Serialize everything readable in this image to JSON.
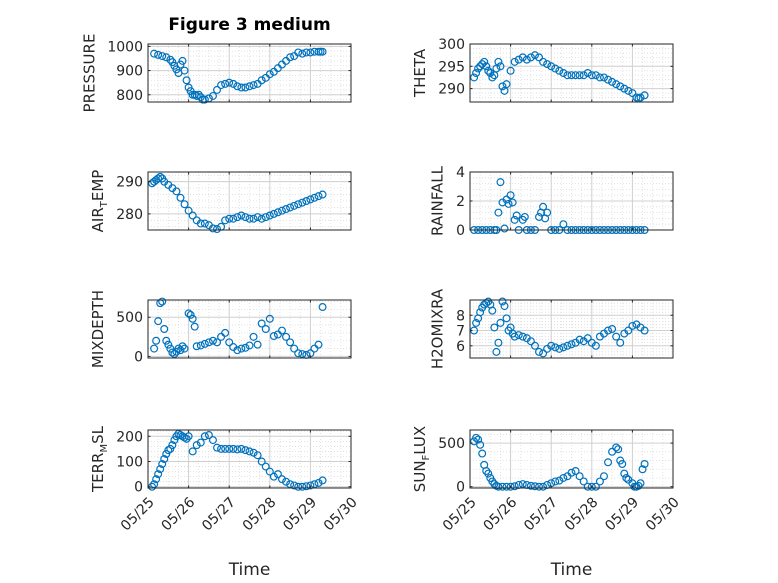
{
  "figure": {
    "title": "Figure 3 medium",
    "marker_color": "#0072BD"
  },
  "x_tick_labels": [
    "05/25",
    "05/26",
    "05/27",
    "05/28",
    "05/29",
    "05/30"
  ],
  "chart_data": [
    {
      "type": "scatter",
      "ylabel": "PRESSURE",
      "ylabel_parts": [
        "PRESSURE"
      ],
      "xlim": [
        0,
        5
      ],
      "ylim": [
        770,
        1010
      ],
      "yticks": [
        800,
        900,
        1000
      ],
      "show_x_ticklabels": false,
      "xlabel": "",
      "x": [
        0.15,
        0.25,
        0.35,
        0.45,
        0.55,
        0.6,
        0.65,
        0.7,
        0.75,
        0.8,
        0.85,
        0.9,
        0.95,
        1.0,
        1.05,
        1.1,
        1.15,
        1.2,
        1.25,
        1.3,
        1.35,
        1.4,
        1.5,
        1.6,
        1.7,
        1.8,
        1.9,
        2.0,
        2.1,
        2.2,
        2.3,
        2.4,
        2.5,
        2.6,
        2.7,
        2.8,
        2.9,
        3.0,
        3.1,
        3.2,
        3.3,
        3.4,
        3.5,
        3.6,
        3.7,
        3.8,
        3.9,
        4.0,
        4.1,
        4.2,
        4.25,
        4.3
      ],
      "y": [
        970,
        965,
        960,
        955,
        945,
        935,
        920,
        905,
        890,
        925,
        940,
        900,
        860,
        830,
        815,
        800,
        800,
        795,
        800,
        790,
        780,
        780,
        785,
        795,
        820,
        840,
        845,
        850,
        845,
        835,
        830,
        830,
        835,
        840,
        845,
        860,
        870,
        885,
        895,
        910,
        925,
        940,
        955,
        960,
        975,
        970,
        975,
        975,
        978,
        978,
        978,
        978
      ]
    },
    {
      "type": "scatter",
      "ylabel": "THETA",
      "ylabel_parts": [
        "THETA"
      ],
      "xlim": [
        0,
        5
      ],
      "ylim": [
        287,
        300
      ],
      "yticks": [
        290,
        295,
        300
      ],
      "show_x_ticklabels": false,
      "xlabel": "",
      "x": [
        0.1,
        0.15,
        0.2,
        0.25,
        0.3,
        0.35,
        0.4,
        0.45,
        0.5,
        0.55,
        0.6,
        0.65,
        0.7,
        0.75,
        0.8,
        0.85,
        0.9,
        1.0,
        1.1,
        1.2,
        1.3,
        1.4,
        1.5,
        1.6,
        1.7,
        1.8,
        1.9,
        2.0,
        2.1,
        2.2,
        2.3,
        2.4,
        2.5,
        2.6,
        2.7,
        2.8,
        2.9,
        3.0,
        3.1,
        3.2,
        3.3,
        3.4,
        3.5,
        3.6,
        3.7,
        3.8,
        3.9,
        4.0,
        4.1,
        4.15,
        4.2,
        4.3
      ],
      "y": [
        292.5,
        293.5,
        294.5,
        295,
        295.5,
        296,
        295,
        294,
        293.5,
        292.5,
        293,
        294.5,
        296,
        295,
        290.5,
        289.5,
        291,
        294,
        296,
        296.5,
        297,
        296.5,
        297,
        297.5,
        297,
        296,
        295.5,
        295,
        294.5,
        294,
        293.5,
        293,
        293,
        293,
        293,
        293,
        293.5,
        293,
        293,
        292.5,
        292.5,
        292,
        291.5,
        291,
        290.5,
        290,
        289.5,
        289,
        288,
        287.8,
        288,
        288.5
      ]
    },
    {
      "type": "scatter",
      "ylabel": "AIR_TEMP",
      "ylabel_parts": [
        "AIR",
        "T",
        "EMP"
      ],
      "xlim": [
        0,
        5
      ],
      "ylim": [
        275,
        293
      ],
      "yticks": [
        280,
        290
      ],
      "show_x_ticklabels": false,
      "xlabel": "",
      "x": [
        0.1,
        0.15,
        0.2,
        0.25,
        0.3,
        0.35,
        0.4,
        0.5,
        0.6,
        0.7,
        0.8,
        0.9,
        1.0,
        1.1,
        1.2,
        1.3,
        1.4,
        1.5,
        1.6,
        1.7,
        1.8,
        1.9,
        2.0,
        2.1,
        2.2,
        2.3,
        2.4,
        2.5,
        2.6,
        2.7,
        2.8,
        2.9,
        3.0,
        3.1,
        3.2,
        3.3,
        3.4,
        3.5,
        3.6,
        3.7,
        3.8,
        3.9,
        4.0,
        4.1,
        4.2,
        4.3
      ],
      "y": [
        289.5,
        290,
        290.5,
        291,
        291.5,
        291,
        290,
        289,
        288,
        287,
        285,
        283,
        281,
        279.5,
        278,
        277,
        277,
        276.5,
        275.5,
        275.3,
        276,
        278,
        278.5,
        278.5,
        279,
        279.5,
        279,
        278.5,
        278.5,
        279,
        278.5,
        279,
        279.5,
        280,
        280.5,
        281,
        281.5,
        282,
        282.5,
        283,
        283.5,
        284,
        284.5,
        285,
        285.5,
        286
      ]
    },
    {
      "type": "scatter",
      "ylabel": "RAINFALL",
      "ylabel_parts": [
        "RAINFALL"
      ],
      "xlim": [
        0,
        5
      ],
      "ylim": [
        0,
        4
      ],
      "yticks": [
        0,
        2,
        4
      ],
      "show_x_ticklabels": false,
      "xlabel": "",
      "x": [
        0.1,
        0.2,
        0.3,
        0.4,
        0.5,
        0.6,
        0.65,
        0.7,
        0.75,
        0.8,
        0.85,
        0.9,
        0.95,
        1.0,
        1.05,
        1.1,
        1.15,
        1.2,
        1.3,
        1.35,
        1.4,
        1.5,
        1.6,
        1.7,
        1.75,
        1.8,
        1.85,
        1.9,
        2.0,
        2.1,
        2.2,
        2.3,
        2.4,
        2.5,
        2.6,
        2.7,
        2.8,
        2.9,
        3.0,
        3.1,
        3.2,
        3.3,
        3.4,
        3.5,
        3.6,
        3.7,
        3.8,
        3.9,
        4.0,
        4.1,
        4.2,
        4.3
      ],
      "y": [
        0,
        0,
        0,
        0,
        0,
        0,
        0,
        1.2,
        3.3,
        1.9,
        0.1,
        2.1,
        1.8,
        2.4,
        1.9,
        0.7,
        1.0,
        0,
        0.7,
        0.9,
        0,
        0,
        0,
        0.9,
        1.2,
        1.6,
        0.8,
        1.2,
        0,
        0,
        0,
        0.4,
        0,
        0,
        0,
        0,
        0,
        0,
        0,
        0,
        0,
        0,
        0,
        0,
        0,
        0,
        0,
        0,
        0,
        0,
        0,
        0
      ]
    },
    {
      "type": "scatter",
      "ylabel": "MIXDEPTH",
      "ylabel_parts": [
        "MIXDEPTH"
      ],
      "xlim": [
        0,
        5
      ],
      "ylim": [
        -20,
        720
      ],
      "yticks": [
        0,
        500
      ],
      "show_x_ticklabels": false,
      "xlabel": "",
      "x": [
        0.15,
        0.2,
        0.25,
        0.3,
        0.35,
        0.4,
        0.45,
        0.5,
        0.55,
        0.6,
        0.65,
        0.7,
        0.75,
        0.8,
        0.85,
        0.9,
        1.0,
        1.05,
        1.1,
        1.15,
        1.2,
        1.3,
        1.4,
        1.5,
        1.6,
        1.7,
        1.8,
        1.9,
        2.0,
        2.1,
        2.2,
        2.3,
        2.4,
        2.5,
        2.6,
        2.7,
        2.8,
        2.9,
        3.0,
        3.1,
        3.2,
        3.3,
        3.4,
        3.5,
        3.6,
        3.7,
        3.8,
        3.9,
        4.0,
        4.1,
        4.2,
        4.3
      ],
      "y": [
        100,
        200,
        450,
        680,
        700,
        350,
        200,
        150,
        100,
        50,
        30,
        60,
        100,
        80,
        130,
        100,
        550,
        530,
        480,
        380,
        130,
        140,
        160,
        180,
        200,
        180,
        250,
        300,
        180,
        120,
        80,
        100,
        110,
        140,
        250,
        150,
        420,
        350,
        480,
        260,
        280,
        330,
        250,
        180,
        100,
        40,
        30,
        20,
        40,
        100,
        150,
        630
      ]
    },
    {
      "type": "scatter",
      "ylabel": "H2OMIXRA",
      "ylabel_parts": [
        "H2OMIXRA"
      ],
      "xlim": [
        0,
        5
      ],
      "ylim": [
        5.2,
        9.0
      ],
      "yticks": [
        6,
        7,
        8
      ],
      "show_x_ticklabels": false,
      "xlabel": "",
      "x": [
        0.1,
        0.15,
        0.2,
        0.25,
        0.3,
        0.35,
        0.4,
        0.45,
        0.5,
        0.55,
        0.6,
        0.65,
        0.7,
        0.75,
        0.8,
        0.85,
        0.9,
        0.95,
        1.0,
        1.05,
        1.1,
        1.2,
        1.3,
        1.4,
        1.5,
        1.6,
        1.7,
        1.8,
        1.9,
        2.0,
        2.1,
        2.2,
        2.3,
        2.4,
        2.5,
        2.6,
        2.7,
        2.8,
        2.9,
        3.0,
        3.1,
        3.2,
        3.3,
        3.4,
        3.5,
        3.6,
        3.7,
        3.8,
        3.9,
        4.0,
        4.1,
        4.2,
        4.3
      ],
      "y": [
        7,
        7.5,
        7.8,
        8.2,
        8.5,
        8.7,
        8.8,
        8.9,
        8.7,
        8.3,
        7.2,
        5.6,
        6.2,
        7.5,
        8.9,
        8.6,
        7.8,
        7.0,
        7.2,
        6.8,
        6.6,
        6.7,
        6.6,
        6.5,
        6.3,
        6.0,
        5.6,
        5.5,
        5.8,
        6.0,
        5.9,
        5.8,
        5.9,
        6.0,
        6.1,
        6.2,
        6.4,
        6.3,
        6.5,
        6.2,
        6.0,
        6.6,
        6.8,
        7.0,
        7.1,
        6.6,
        6.2,
        6.8,
        7.0,
        7.3,
        7.4,
        7.2,
        7.0
      ]
    },
    {
      "type": "scatter",
      "ylabel": "TERR_MSL",
      "ylabel_parts": [
        "TERR",
        "M",
        "SL"
      ],
      "xlim": [
        0,
        5
      ],
      "ylim": [
        -5,
        225
      ],
      "yticks": [
        0,
        100,
        200
      ],
      "show_x_ticklabels": true,
      "xlabel": "Time",
      "x": [
        0.1,
        0.15,
        0.2,
        0.25,
        0.3,
        0.35,
        0.4,
        0.45,
        0.5,
        0.55,
        0.6,
        0.65,
        0.7,
        0.75,
        0.8,
        0.85,
        0.9,
        0.95,
        1.0,
        1.1,
        1.2,
        1.3,
        1.4,
        1.5,
        1.6,
        1.7,
        1.8,
        1.9,
        2.0,
        2.1,
        2.2,
        2.3,
        2.4,
        2.5,
        2.6,
        2.7,
        2.8,
        2.9,
        3.0,
        3.1,
        3.2,
        3.3,
        3.4,
        3.5,
        3.6,
        3.7,
        3.8,
        3.9,
        4.0,
        4.1,
        4.2,
        4.3
      ],
      "y": [
        0,
        10,
        30,
        50,
        70,
        90,
        110,
        130,
        145,
        150,
        165,
        185,
        200,
        210,
        205,
        200,
        195,
        190,
        200,
        140,
        165,
        175,
        200,
        205,
        185,
        155,
        150,
        150,
        150,
        150,
        148,
        150,
        145,
        140,
        135,
        125,
        100,
        80,
        60,
        40,
        50,
        30,
        20,
        10,
        5,
        0,
        0,
        2,
        5,
        10,
        15,
        25
      ]
    },
    {
      "type": "scatter",
      "ylabel": "SUN_FLUX",
      "ylabel_parts": [
        "SUN",
        "F",
        "LUX"
      ],
      "xlim": [
        0,
        5
      ],
      "ylim": [
        -15,
        650
      ],
      "yticks": [
        0,
        500
      ],
      "show_x_ticklabels": true,
      "xlabel": "Time",
      "x": [
        0.1,
        0.15,
        0.2,
        0.25,
        0.3,
        0.35,
        0.4,
        0.45,
        0.5,
        0.55,
        0.6,
        0.65,
        0.7,
        0.8,
        0.9,
        1.0,
        1.1,
        1.2,
        1.3,
        1.4,
        1.5,
        1.6,
        1.7,
        1.8,
        1.9,
        2.0,
        2.1,
        2.2,
        2.3,
        2.4,
        2.5,
        2.6,
        2.7,
        2.8,
        2.9,
        3.0,
        3.1,
        3.2,
        3.3,
        3.4,
        3.5,
        3.6,
        3.65,
        3.7,
        3.75,
        3.8,
        3.85,
        3.9,
        4.0,
        4.05,
        4.1,
        4.15,
        4.2,
        4.25,
        4.3
      ],
      "y": [
        520,
        560,
        540,
        480,
        380,
        250,
        180,
        150,
        100,
        60,
        30,
        10,
        0,
        0,
        0,
        0,
        5,
        20,
        30,
        20,
        10,
        5,
        0,
        0,
        20,
        40,
        60,
        70,
        100,
        120,
        160,
        180,
        120,
        60,
        0,
        0,
        0,
        60,
        120,
        280,
        400,
        450,
        430,
        300,
        260,
        150,
        100,
        80,
        40,
        0,
        0,
        10,
        40,
        200,
        260
      ]
    }
  ]
}
